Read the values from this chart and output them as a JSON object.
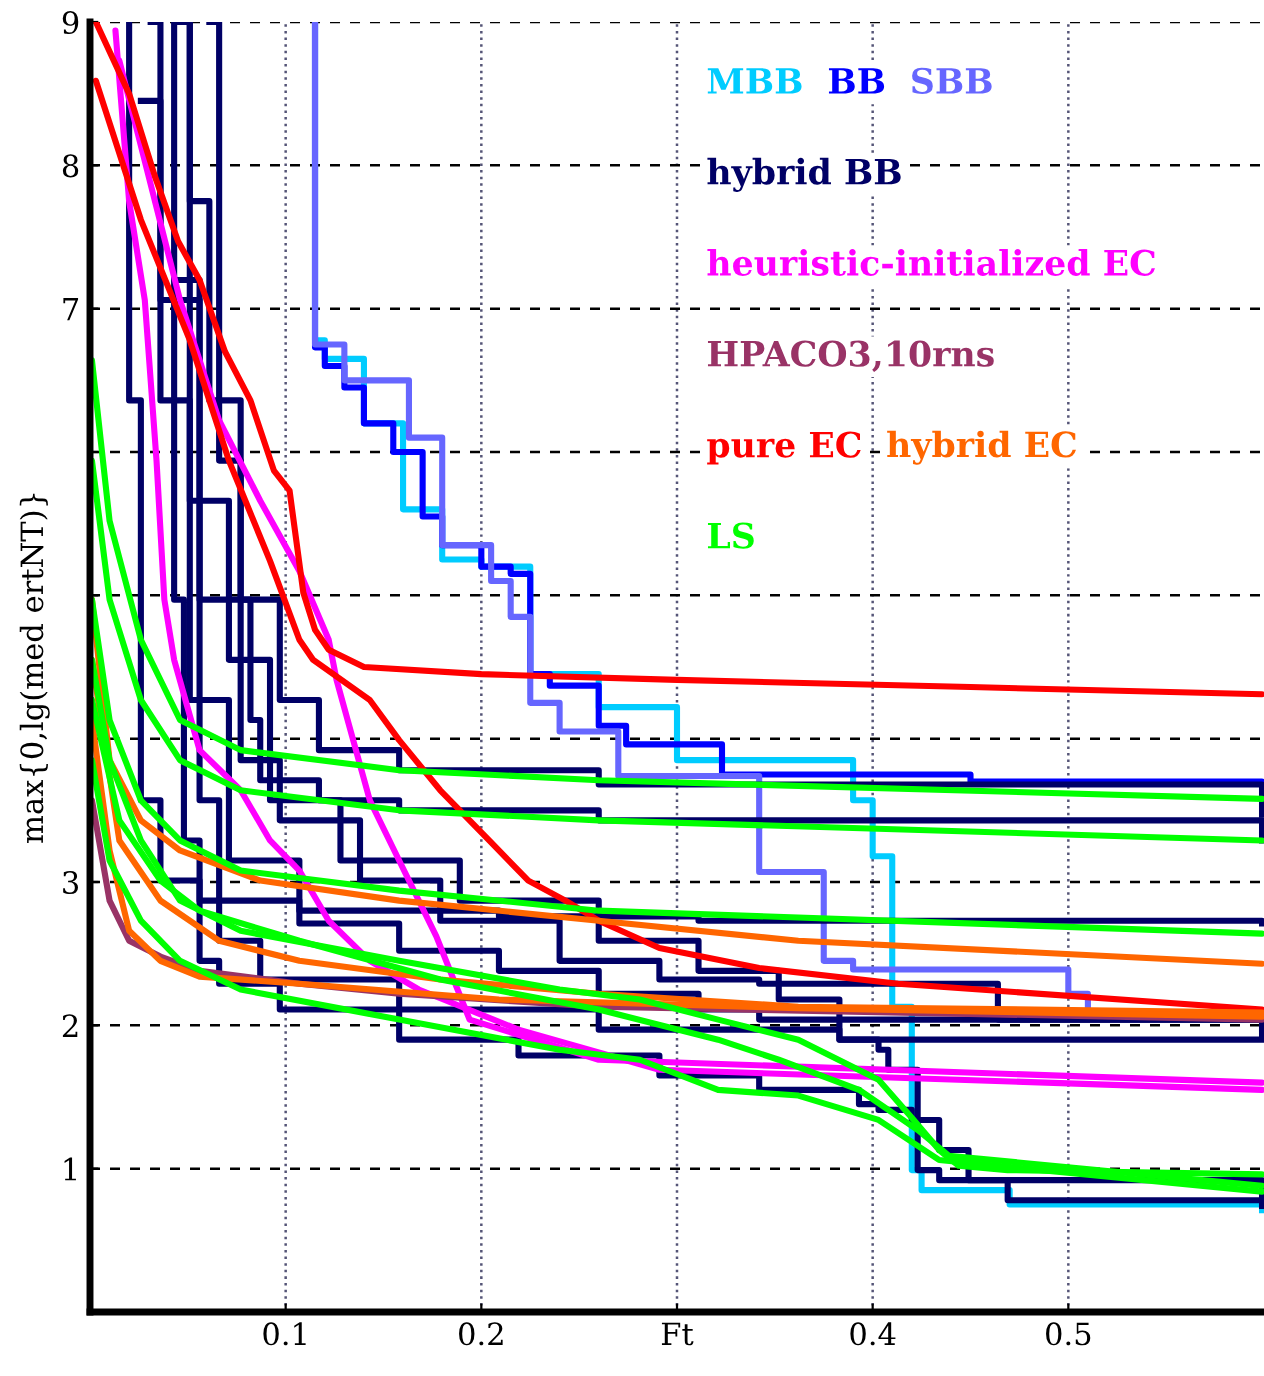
{
  "chart_data": {
    "type": "line",
    "ylabel": "max{0,lg(med ertNT)}",
    "xlim": [
      0,
      0.6
    ],
    "ylim": [
      0,
      9
    ],
    "xticks": [
      0.1,
      0.2,
      {
        "value": 0.3,
        "label": "Ft"
      },
      0.4,
      0.5
    ],
    "yticks": [
      1,
      2,
      3,
      {
        "value": 4,
        "label": null
      },
      {
        "value": 5,
        "label": null
      },
      {
        "value": 6,
        "label": null
      },
      7,
      8,
      9
    ],
    "grid": true,
    "legend": "top right",
    "marker": "none",
    "line_style": "solid",
    "series": [
      {
        "name": "MBB",
        "type": "step",
        "color": "#00ccff",
        "x": [
          0.115,
          0.115,
          0.12,
          0.14,
          0.16,
          0.18,
          0.2,
          0.225,
          0.26,
          0.3,
          0.39,
          0.4,
          0.41,
          0.42,
          0.425,
          0.47,
          0.599
        ],
        "values": [
          9,
          6.78,
          6.65,
          6.2,
          5.6,
          5.25,
          5.2,
          4.45,
          4.22,
          3.85,
          3.57,
          3.18,
          2.13,
          0.99,
          0.85,
          0.75,
          0.71
        ]
      },
      {
        "name": "BB",
        "type": "step",
        "color": "#0000ff",
        "x": [
          0.115,
          0.115,
          0.12,
          0.13,
          0.14,
          0.155,
          0.17,
          0.18,
          0.2,
          0.215,
          0.225,
          0.235,
          0.26,
          0.274,
          0.323,
          0.45,
          0.599
        ],
        "values": [
          9,
          6.73,
          6.6,
          6.45,
          6.2,
          6.0,
          5.55,
          5.35,
          5.2,
          5.15,
          4.45,
          4.37,
          4.09,
          3.96,
          3.75,
          3.7,
          3.66
        ]
      },
      {
        "name": "SBB",
        "type": "step",
        "color": "#6666ff",
        "x": [
          0.115,
          0.115,
          0.13,
          0.163,
          0.18,
          0.205,
          0.215,
          0.225,
          0.24,
          0.27,
          0.342,
          0.375,
          0.39,
          0.5,
          0.51
        ],
        "values": [
          9,
          6.75,
          6.5,
          6.1,
          5.35,
          5.1,
          4.85,
          4.25,
          4.05,
          3.74,
          3.07,
          2.45,
          2.39,
          2.22,
          2.1
        ]
      },
      {
        "name": "hybrid BB",
        "type": "step",
        "color": "#000066",
        "x": [
          0.043,
          0.043,
          0.048,
          0.056,
          0.066,
          0.097,
          0.158,
          0.219,
          0.291,
          0.342,
          0.393,
          0.403,
          0.42,
          0.434,
          0.449,
          0.469,
          0.599
        ],
        "values": [
          9,
          4.97,
          3.29,
          2.45,
          2.29,
          2.11,
          1.9,
          1.79,
          1.65,
          1.55,
          1.45,
          1.41,
          1.34,
          1.13,
          0.92,
          0.78,
          0.74
        ]
      },
      {
        "type": "step",
        "color": "#000066",
        "x": [
          0.048,
          0.051,
          0.056,
          0.066,
          0.087,
          0.158,
          0.26,
          0.383,
          0.599
        ],
        "values": [
          9,
          5.66,
          3.57,
          2.59,
          2.32,
          2.11,
          1.97,
          1.9,
          1.9
        ]
      },
      {
        "type": "step",
        "color": "#000066",
        "x": [
          0.02,
          0.02,
          0.026,
          0.036,
          0.056,
          0.107,
          0.209,
          0.311,
          0.599
        ],
        "values": [
          9,
          6.36,
          3.57,
          3.01,
          2.87,
          2.8,
          2.76,
          2.73,
          2.71
        ]
      },
      {
        "type": "step",
        "color": "#000066",
        "x": [
          0.061,
          0.066,
          0.077,
          0.082,
          0.087,
          0.117,
          0.158,
          0.26,
          0.599
        ],
        "values": [
          9,
          5.94,
          4.97,
          4.13,
          3.71,
          3.57,
          3.5,
          3.43,
          3.29
        ]
      },
      {
        "type": "step",
        "color": "#000066",
        "x": [
          0.046,
          0.051,
          0.061,
          0.077,
          0.097,
          0.117,
          0.158,
          0.26,
          0.599
        ],
        "values": [
          9,
          7.75,
          6.36,
          4.97,
          4.27,
          3.92,
          3.78,
          3.68,
          3.47
        ]
      },
      {
        "type": "step",
        "color": "#000066",
        "x": [
          0.031,
          0.036,
          0.051,
          0.071,
          0.107,
          0.158,
          0.209,
          0.26,
          0.311,
          0.342,
          0.383,
          0.403,
          0.408,
          0.423,
          0.434,
          0.599
        ],
        "values": [
          9,
          6.36,
          4.27,
          3.15,
          2.71,
          2.52,
          2.38,
          2.22,
          2.11,
          2.04,
          1.9,
          1.83,
          1.69,
          0.99,
          0.92,
          0.78
        ]
      },
      {
        "type": "step",
        "color": "#000066",
        "x": [
          0.026,
          0.036,
          0.056,
          0.077,
          0.097,
          0.138,
          0.179,
          0.24,
          0.291,
          0.342,
          0.464,
          0.599
        ],
        "values": [
          8.45,
          7.06,
          4.97,
          3.85,
          3.43,
          3.01,
          2.73,
          2.45,
          2.32,
          2.29,
          2.04,
          1.97
        ]
      },
      {
        "type": "step",
        "color": "#000066",
        "x": [
          0.046,
          0.056,
          0.071,
          0.092,
          0.128,
          0.189,
          0.26,
          0.311,
          0.352,
          0.383,
          0.599
        ],
        "values": [
          7.2,
          5.66,
          4.55,
          3.57,
          3.15,
          2.87,
          2.59,
          2.38,
          2.18,
          2.04,
          1.92
        ]
      },
      {
        "name": "heuristic-initialized EC",
        "color": "#ff00ff",
        "x": [
          0.013,
          0.02,
          0.028,
          0.034,
          0.038,
          0.043,
          0.056,
          0.077,
          0.092,
          0.107,
          0.122,
          0.143,
          0.168,
          0.219,
          0.291,
          0.599
        ],
        "values": [
          8.94,
          7.75,
          7.06,
          5.94,
          4.97,
          4.55,
          3.92,
          3.64,
          3.29,
          3.08,
          2.73,
          2.45,
          2.25,
          1.97,
          1.69,
          1.55
        ]
      },
      {
        "color": "#ff00ff",
        "x": [
          0.015,
          0.046,
          0.066,
          0.087,
          0.107,
          0.122,
          0.126,
          0.143,
          0.158,
          0.177,
          0.194,
          0.26,
          0.599
        ],
        "values": [
          8.73,
          7.06,
          6.22,
          5.66,
          5.17,
          4.69,
          4.41,
          3.57,
          3.15,
          2.62,
          2.04,
          1.76,
          1.6
        ]
      },
      {
        "name": "HPACO3,10rns",
        "color": "#993366",
        "x": [
          0.001,
          0.01,
          0.02,
          0.036,
          0.056,
          0.107,
          0.158,
          0.26,
          0.599
        ],
        "values": [
          3.57,
          2.87,
          2.59,
          2.48,
          2.38,
          2.29,
          2.22,
          2.13,
          2.04
        ]
      },
      {
        "name": "pure EC",
        "color": "#ff0000",
        "x": [
          0.003,
          0.02,
          0.033,
          0.045,
          0.056,
          0.069,
          0.082,
          0.094,
          0.102,
          0.109,
          0.115,
          0.122,
          0.14,
          0.2,
          0.3,
          0.45,
          0.599
        ],
        "values": [
          9,
          8.5,
          7.93,
          7.47,
          7.2,
          6.7,
          6.36,
          5.87,
          5.73,
          5.02,
          4.76,
          4.62,
          4.5,
          4.45,
          4.41,
          4.36,
          4.31
        ]
      },
      {
        "color": "#ff0000",
        "x": [
          0.003,
          0.026,
          0.051,
          0.071,
          0.092,
          0.107,
          0.114,
          0.143,
          0.158,
          0.179,
          0.204,
          0.224,
          0.243,
          0.26,
          0.291,
          0.342,
          0.413,
          0.599
        ],
        "values": [
          8.59,
          7.62,
          6.78,
          5.94,
          5.24,
          4.69,
          4.55,
          4.27,
          3.99,
          3.64,
          3.29,
          3.01,
          2.87,
          2.73,
          2.54,
          2.4,
          2.29,
          2.11
        ]
      },
      {
        "name": "hybrid EC",
        "color": "#ff6600",
        "x": [
          0.001,
          0.01,
          0.026,
          0.046,
          0.087,
          0.158,
          0.26,
          0.362,
          0.599
        ],
        "values": [
          4.97,
          3.85,
          3.43,
          3.22,
          3.01,
          2.87,
          2.73,
          2.59,
          2.43
        ]
      },
      {
        "color": "#ff6600",
        "x": [
          0.001,
          0.015,
          0.036,
          0.066,
          0.107,
          0.179,
          0.26,
          0.362,
          0.599
        ],
        "values": [
          4.55,
          3.29,
          2.87,
          2.59,
          2.45,
          2.32,
          2.22,
          2.13,
          2.09
        ]
      },
      {
        "color": "#ff6600",
        "x": [
          0.001,
          0.01,
          0.02,
          0.036,
          0.056,
          0.107,
          0.209,
          0.362,
          0.599
        ],
        "values": [
          4.13,
          3.22,
          2.66,
          2.45,
          2.34,
          2.29,
          2.18,
          2.12,
          2.06
        ]
      },
      {
        "name": "LS",
        "color": "#00ff00",
        "x": [
          0.001,
          0.01,
          0.026,
          0.046,
          0.077,
          0.158,
          0.26,
          0.599
        ],
        "values": [
          6.64,
          5.52,
          4.69,
          4.13,
          3.92,
          3.78,
          3.71,
          3.58
        ]
      },
      {
        "color": "#00ff00",
        "x": [
          0.001,
          0.01,
          0.026,
          0.046,
          0.077,
          0.158,
          0.26,
          0.599
        ],
        "values": [
          5.94,
          4.97,
          4.27,
          3.85,
          3.64,
          3.5,
          3.43,
          3.29
        ]
      },
      {
        "color": "#00ff00",
        "x": [
          0.001,
          0.01,
          0.026,
          0.046,
          0.077,
          0.158,
          0.26,
          0.599
        ],
        "values": [
          4.97,
          4.13,
          3.57,
          3.29,
          3.08,
          2.94,
          2.8,
          2.64
        ]
      },
      {
        "color": "#00ff00",
        "x": [
          0.001,
          0.01,
          0.026,
          0.046,
          0.077,
          0.158,
          0.24,
          0.281,
          0.321,
          0.362,
          0.403,
          0.421,
          0.434,
          0.444,
          0.469,
          0.599
        ],
        "values": [
          4.55,
          3.85,
          3.29,
          2.87,
          2.66,
          2.45,
          2.25,
          2.18,
          2.04,
          1.9,
          1.62,
          1.34,
          1.13,
          1.02,
          0.99,
          0.96
        ]
      },
      {
        "color": "#00ff00",
        "x": [
          0.001,
          0.015,
          0.036,
          0.056,
          0.107,
          0.179,
          0.26,
          0.321,
          0.352,
          0.393,
          0.423,
          0.439,
          0.599
        ],
        "values": [
          4.27,
          3.43,
          3.01,
          2.8,
          2.59,
          2.32,
          2.11,
          1.9,
          1.76,
          1.55,
          1.27,
          1.09,
          0.88
        ]
      },
      {
        "color": "#00ff00",
        "x": [
          0.001,
          0.01,
          0.026,
          0.046,
          0.077,
          0.158,
          0.24,
          0.281,
          0.321,
          0.362,
          0.403,
          0.434,
          0.599
        ],
        "values": [
          3.85,
          3.15,
          2.73,
          2.45,
          2.25,
          2.04,
          1.83,
          1.76,
          1.55,
          1.51,
          1.34,
          1.06,
          0.84
        ]
      }
    ]
  }
}
